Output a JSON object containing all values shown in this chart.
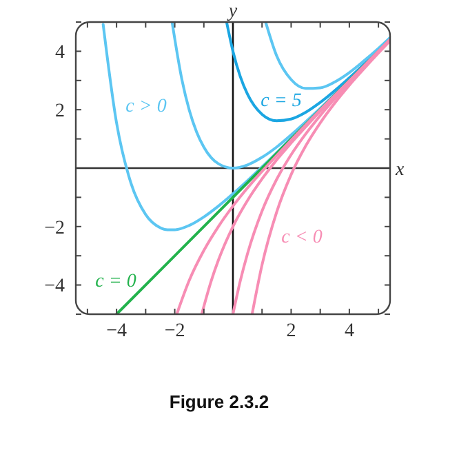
{
  "chart_data": {
    "type": "line",
    "title": "Figure 2.3.2",
    "xlabel": "x",
    "ylabel": "y",
    "xlim": [
      -5.4,
      5.4
    ],
    "ylim": [
      -5,
      5
    ],
    "xticks": [
      {
        "value": -5,
        "label": null
      },
      {
        "value": -4,
        "label": "−4"
      },
      {
        "value": -3,
        "label": null
      },
      {
        "value": -2,
        "label": "−2"
      },
      {
        "value": -1,
        "label": null
      },
      {
        "value": 1,
        "label": null
      },
      2,
      {
        "value": 3,
        "label": null
      },
      4,
      {
        "value": 5,
        "label": null
      }
    ],
    "yticks": [
      {
        "value": -5,
        "label": null
      },
      {
        "value": -4,
        "label": "−4"
      },
      {
        "value": -3,
        "label": null
      },
      {
        "value": -2,
        "label": "−2"
      },
      {
        "value": -1,
        "label": null
      },
      {
        "value": 1,
        "label": null
      },
      2,
      {
        "value": 3,
        "label": null
      },
      4,
      {
        "value": 5,
        "label": null
      }
    ],
    "grid": false,
    "marker": "none",
    "line_style": "solid",
    "series": [
      {
        "name": "c > 0",
        "color": "#5cc6f2",
        "x": [
          -4.46,
          -4,
          -3.5,
          -3,
          -2.5,
          -2.25,
          -2,
          -1.5,
          -1,
          -0.5,
          0,
          1,
          2,
          3,
          4,
          5.4
        ],
        "values": [
          4.92,
          1.55,
          -0.53,
          -1.59,
          -2.04,
          -2.11,
          -2.11,
          -1.96,
          -1.67,
          -1.3,
          -0.88,
          0.04,
          1.02,
          2.01,
          3.0,
          4.4
        ]
      },
      {
        "color": "#5cc6f2",
        "x": [
          -2.09,
          -1.75,
          -1.5,
          -1.25,
          -1,
          -0.5,
          0,
          0.5,
          1,
          1.5,
          2,
          3,
          4,
          5.4
        ],
        "values": [
          4.99,
          3.01,
          1.98,
          1.24,
          0.72,
          0.15,
          0,
          0.11,
          0.37,
          0.72,
          1.14,
          2.05,
          3.02,
          4.4
        ]
      },
      {
        "name": "c = 5",
        "color": "#1ba6e2",
        "x": [
          -0.21,
          0,
          0.25,
          0.5,
          1,
          1.5,
          2,
          2.5,
          3,
          4,
          5,
          5.4
        ],
        "values": [
          4.96,
          4,
          3.14,
          2.53,
          1.84,
          1.62,
          1.68,
          1.91,
          2.25,
          3.09,
          4.03,
          4.42
        ]
      },
      {
        "color": "#5cc6f2",
        "x": [
          1.13,
          1.5,
          2,
          2.5,
          3,
          3.5,
          4,
          4.5,
          5,
          5.4
        ],
        "values": [
          4.98,
          3.85,
          3.03,
          2.73,
          2.75,
          2.95,
          3.27,
          3.67,
          4.1,
          4.47
        ]
      },
      {
        "name": "c = 0",
        "color": "#22b24c",
        "x": [
          -4,
          5.4
        ],
        "values": [
          -5,
          4.4
        ]
      },
      {
        "color": "#f78db4",
        "x": [
          -1.92,
          -1.5,
          -1,
          -0.5,
          0,
          0.5,
          1,
          1.5,
          2,
          3,
          4,
          5.4
        ],
        "values": [
          -4.97,
          -3.84,
          -2.82,
          -2.0,
          -1.3,
          -0.68,
          -0.11,
          0.43,
          0.96,
          1.99,
          2.99,
          4.4
        ]
      },
      {
        "color": "#f78db4",
        "x": [
          -1.07,
          -0.75,
          -0.5,
          0,
          0.5,
          1,
          1.5,
          2,
          3,
          4,
          5.4
        ],
        "values": [
          -4.99,
          -3.87,
          -3.15,
          -2,
          -1.11,
          -0.37,
          0.28,
          0.86,
          1.95,
          2.98,
          4.4
        ]
      },
      {
        "color": "#f78db4",
        "x": [
          0,
          0.25,
          0.5,
          1,
          1.5,
          2,
          2.5,
          3,
          4,
          5.4
        ],
        "values": [
          -5,
          -3.87,
          -2.93,
          -1.47,
          -0.39,
          0.46,
          1.17,
          1.8,
          2.93,
          4.38
        ]
      },
      {
        "name": "c < 0",
        "color": "#f78db4",
        "x": [
          0.66,
          1,
          1.5,
          2,
          2.5,
          3,
          3.5,
          4,
          4.5,
          5,
          5.4
        ],
        "values": [
          -4.99,
          -3.31,
          -1.51,
          -0.22,
          0.76,
          1.55,
          2.23,
          2.84,
          3.4,
          3.94,
          4.36
        ]
      }
    ]
  }
}
